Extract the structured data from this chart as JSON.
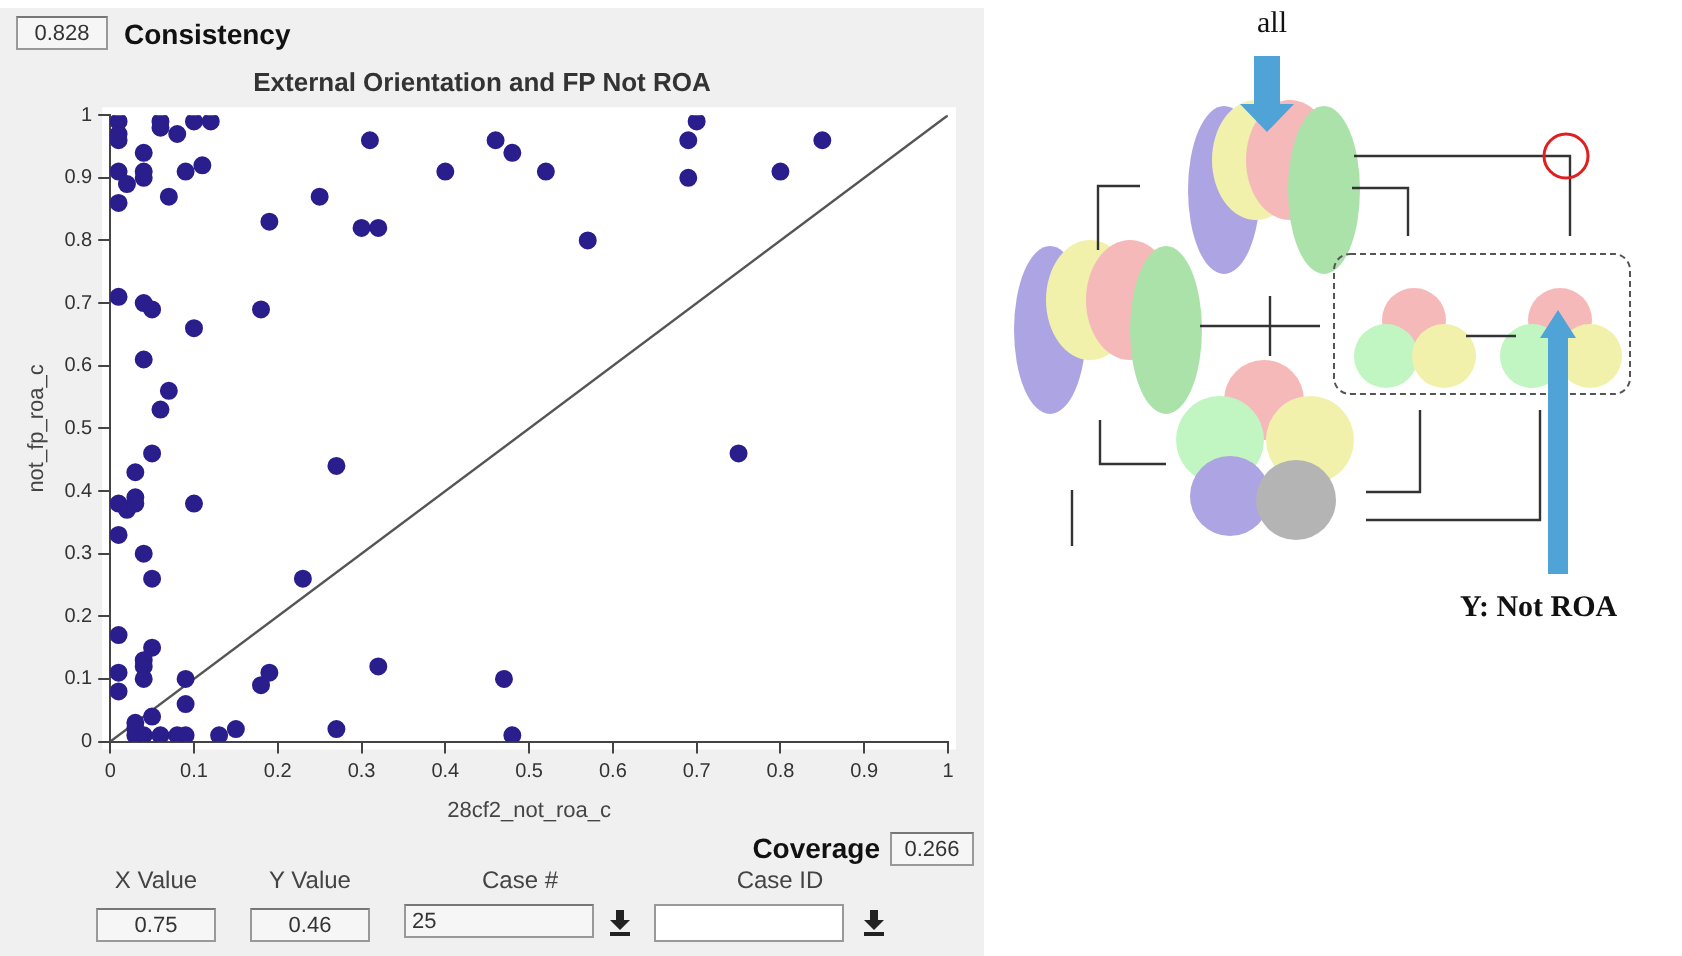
{
  "chart_data": {
    "type": "scatter",
    "title": "External Orientation and FP Not ROA",
    "xlabel": "28cf2_not_roa_c",
    "ylabel": "not_fp_roa_c",
    "xlim": [
      0,
      1
    ],
    "ylim": [
      0,
      1
    ],
    "xticks": [
      0,
      0.1,
      0.2,
      0.3,
      0.4,
      0.5,
      0.6,
      0.7,
      0.8,
      0.9,
      1
    ],
    "yticks": [
      0,
      0.1,
      0.2,
      0.3,
      0.4,
      0.5,
      0.6,
      0.7,
      0.8,
      0.9,
      1
    ],
    "grid": false,
    "legend": false,
    "series": [
      {
        "color": "#2a1d8c",
        "marker": "circle",
        "x": [
          0.01,
          0.01,
          0.01,
          0.01,
          0.02,
          0.01,
          0.04,
          0.04,
          0.04,
          0.06,
          0.06,
          0.07,
          0.08,
          0.09,
          0.1,
          0.11,
          0.12,
          0.19,
          0.25,
          0.3,
          0.32,
          0.31,
          0.4,
          0.46,
          0.48,
          0.52,
          0.57,
          0.69,
          0.69,
          0.7,
          0.8,
          0.85,
          0.01,
          0.04,
          0.05,
          0.18,
          0.1,
          0.04,
          0.07,
          0.06,
          0.05,
          0.03,
          0.01,
          0.02,
          0.03,
          0.03,
          0.1,
          0.01,
          0.04,
          0.05,
          0.23,
          0.27,
          0.75,
          0.01,
          0.01,
          0.01,
          0.05,
          0.04,
          0.04,
          0.04,
          0.09,
          0.09,
          0.05,
          0.03,
          0.03,
          0.03,
          0.04,
          0.06,
          0.08,
          0.09,
          0.13,
          0.15,
          0.18,
          0.19,
          0.27,
          0.32,
          0.47,
          0.48
        ],
        "values": [
          0.99,
          0.97,
          0.96,
          0.91,
          0.89,
          0.86,
          0.94,
          0.91,
          0.9,
          0.99,
          0.98,
          0.87,
          0.97,
          0.91,
          0.99,
          0.92,
          0.99,
          0.83,
          0.87,
          0.82,
          0.82,
          0.96,
          0.91,
          0.96,
          0.94,
          0.91,
          0.8,
          0.96,
          0.9,
          0.99,
          0.91,
          0.96,
          0.71,
          0.7,
          0.69,
          0.69,
          0.66,
          0.61,
          0.56,
          0.53,
          0.46,
          0.43,
          0.38,
          0.37,
          0.39,
          0.38,
          0.38,
          0.33,
          0.3,
          0.26,
          0.26,
          0.44,
          0.46,
          0.17,
          0.11,
          0.08,
          0.15,
          0.13,
          0.12,
          0.1,
          0.1,
          0.06,
          0.04,
          0.03,
          0.02,
          0.01,
          0.01,
          0.01,
          0.01,
          0.01,
          0.01,
          0.02,
          0.09,
          0.11,
          0.02,
          0.12,
          0.1,
          0.01
        ]
      },
      {
        "type": "line",
        "color": "#555555",
        "x": [
          0,
          1
        ],
        "values": [
          0,
          1
        ]
      }
    ],
    "annotations": [
      "0.828",
      "Consistency",
      "Coverage",
      "0.266",
      "X Value",
      "Y Value",
      "Case #",
      "Case ID",
      "0.75",
      "0.46",
      "25",
      "all",
      "Y: Not ROA"
    ]
  }
}
